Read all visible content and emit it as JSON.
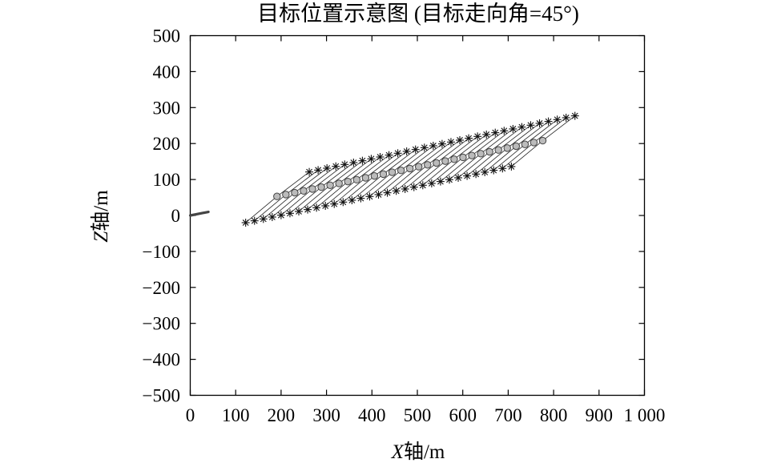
{
  "chart_data": {
    "type": "scatter",
    "title": "目标位置示意图 (目标走向角=45°)",
    "xlabel": "X轴/m",
    "ylabel": "Z轴/m",
    "xlim": [
      0,
      1000
    ],
    "ylim": [
      -500,
      500
    ],
    "xticks": [
      "0",
      "100",
      "200",
      "300",
      "400",
      "500",
      "600",
      "700",
      "800",
      "900",
      "1 000"
    ],
    "yticks": [
      "500",
      "400",
      "300",
      "200",
      "100",
      "0",
      "−100",
      "−200",
      "−300",
      "−400",
      "−500"
    ],
    "grid": false,
    "series": [
      {
        "marker": "asterisk",
        "description_of_positions": "lower edge row",
        "x_start": 122,
        "y_start": -20,
        "x_end": 707,
        "y_end": 136,
        "count": 31
      },
      {
        "marker": "circle",
        "x_start": 191,
        "y_start": 53,
        "x_end": 776,
        "y_end": 208,
        "count": 31
      },
      {
        "marker": "asterisk",
        "x_start": 262,
        "y_start": 121,
        "x_end": 847,
        "y_end": 277,
        "count": 31
      }
    ],
    "source_marker": {
      "x_start": 0,
      "y_start": 0,
      "x_end": 40,
      "y_end": 10
    }
  }
}
